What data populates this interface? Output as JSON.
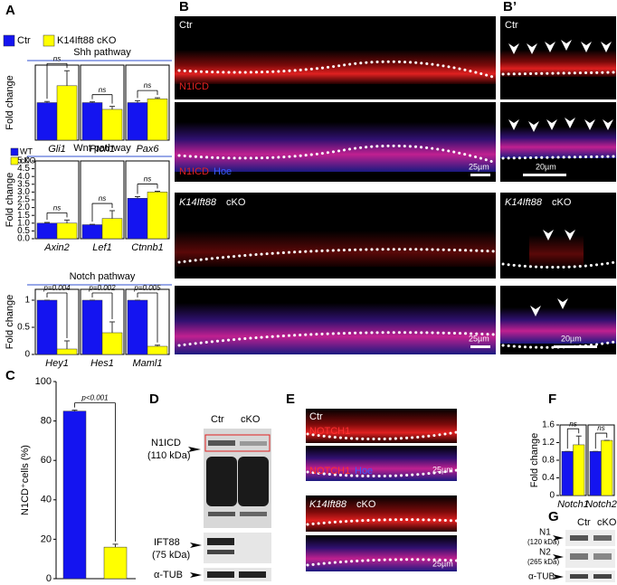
{
  "chart_data": [
    {
      "type": "bar",
      "title": "Shh pathway",
      "y_label": "Fold change",
      "categories": [
        "Gli1",
        "Ptch1",
        "Pax6"
      ],
      "series": [
        {
          "name": "Ctr",
          "color": "#1414f0",
          "values": [
            1.0,
            1.0,
            1.0
          ],
          "errors": [
            0.03,
            0.02,
            0.05
          ]
        },
        {
          "name": "K14Ift88 cKO",
          "color": "#ffff00",
          "values": [
            1.45,
            0.82,
            1.1
          ],
          "errors": [
            0.4,
            0.08,
            0.03
          ]
        }
      ],
      "annotations": [
        "ns",
        "ns",
        "ns"
      ],
      "ylim": [
        0,
        2
      ],
      "legend": "top"
    },
    {
      "type": "bar",
      "title": "Wnt pathway",
      "y_label": "Fold change",
      "categories": [
        "Axin2",
        "Lef1",
        "Ctnnb1"
      ],
      "series": [
        {
          "name": "WT",
          "color": "#1414f0",
          "values": [
            1.0,
            0.9,
            2.6
          ],
          "errors": [
            0.05,
            0.02,
            0.1
          ]
        },
        {
          "name": "cKO",
          "color": "#ffff00",
          "values": [
            1.0,
            1.3,
            3.0
          ],
          "errors": [
            0.2,
            0.5,
            0.05
          ]
        }
      ],
      "annotations": [
        "ns",
        "ns",
        "ns"
      ],
      "ylim": [
        0,
        5
      ],
      "yticks": [
        {
          "value": 0,
          "label": "0.0"
        },
        0.5,
        {
          "value": 1,
          "label": "1.0"
        },
        1.5,
        {
          "value": 2,
          "label": "2.0"
        },
        2.5,
        {
          "value": 3,
          "label": "3.0"
        },
        3.5,
        {
          "value": 4,
          "label": "4.0"
        },
        4.5,
        {
          "value": 5,
          "label": "5.0"
        }
      ],
      "legend": "upper left"
    },
    {
      "type": "bar",
      "title": "Notch pathway",
      "y_label": "Fold change",
      "categories": [
        "Hey1",
        "Hes1",
        "Maml1"
      ],
      "series": [
        {
          "color": "#1414f0",
          "values": [
            1.0,
            1.0,
            1.0
          ],
          "errors": [
            0,
            0,
            0
          ]
        },
        {
          "color": "#ffff00",
          "values": [
            0.1,
            0.4,
            0.15
          ],
          "errors": [
            0.15,
            0.2,
            0.02
          ]
        }
      ],
      "annotations": [
        "p=0.004",
        "p=0.002",
        "p=0.005"
      ],
      "ylim": [
        0,
        1.2
      ],
      "yticks": [
        0,
        0.5,
        1
      ]
    },
    {
      "type": "bar",
      "y_label": "N1CD⁺cells (%)",
      "categories": [
        null
      ],
      "series": [
        {
          "color": "#1414f0",
          "values": [
            85
          ],
          "errors": [
            0.5
          ]
        },
        {
          "color": "#ffff00",
          "values": [
            16
          ],
          "errors": [
            1.5
          ]
        }
      ],
      "annotations": [
        "p<0.001"
      ],
      "ylim": [
        0,
        100
      ],
      "yticks": [
        0,
        20,
        40,
        60,
        80,
        100
      ]
    },
    {
      "type": "bar",
      "y_label": "Fold change",
      "categories": [
        "Notch1",
        "Notch2"
      ],
      "series": [
        {
          "color": "#1414f0",
          "values": [
            1.0,
            1.0
          ],
          "errors": [
            0,
            0
          ]
        },
        {
          "color": "#ffff00",
          "values": [
            1.15,
            1.25
          ],
          "errors": [
            0.2,
            0
          ]
        }
      ],
      "annotations": [
        "ns",
        "ns"
      ],
      "ylim": [
        0,
        1.6
      ],
      "yticks": [
        0,
        0.4,
        0.8,
        1.2,
        1.6
      ]
    }
  ],
  "figure": {
    "panel_labels": [
      "A",
      "B",
      "B’",
      "C",
      "D",
      "E",
      "F",
      "G"
    ],
    "ctr": "Ctr",
    "cko": "cKO",
    "gene": "K14Ift88",
    "n1icd": "N1ICD",
    "hoe": "Hoe",
    "scale_b": "25µm",
    "scale_bp": "20µm",
    "notch1": "NOTCH1",
    "blot_d": {
      "n1icd": "N1ICD",
      "n1icd_kda": "(110 kDa)",
      "ift88": "IFT88",
      "ift88_kda": "(75 kDa)",
      "tub": "α-TUB"
    },
    "blot_g": {
      "n1": "N1",
      "n1_kda": "(120 kDa)",
      "n2": "N2",
      "n2_kda": "(265 kDa)",
      "tub": "α-TUB"
    }
  }
}
